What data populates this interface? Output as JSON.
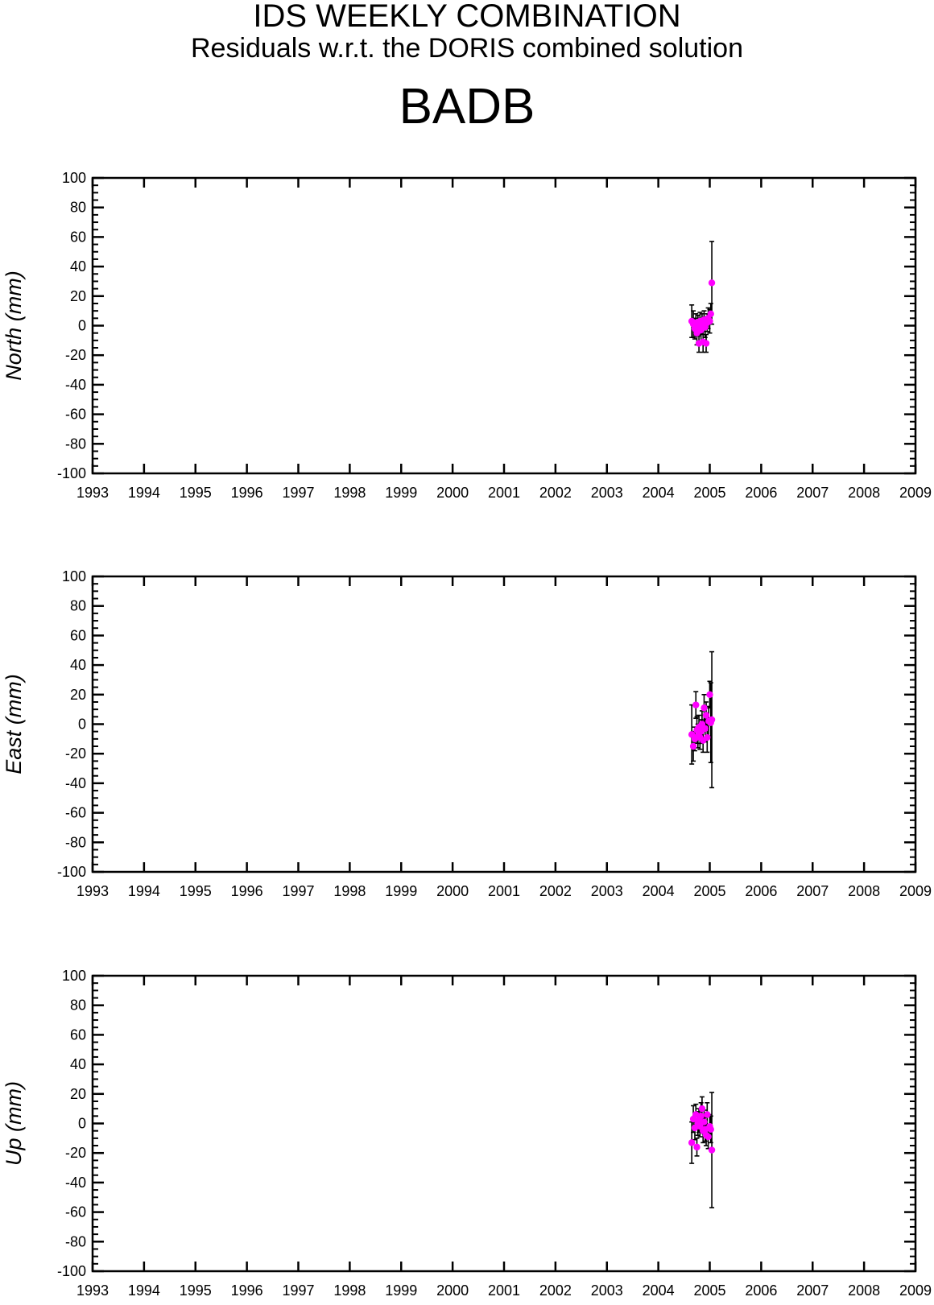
{
  "title": "IDS WEEKLY COMBINATION",
  "subtitle": "Residuals w.r.t. the DORIS combined solution",
  "station": "BADB",
  "chart_data": [
    {
      "type": "scatter",
      "ylabel": "North (mm)",
      "xlim": [
        1993,
        2009
      ],
      "ylim": [
        -100,
        100
      ],
      "x_ticks": [
        "1993",
        "1994",
        "1995",
        "1996",
        "1997",
        "1998",
        "1999",
        "2000",
        "2001",
        "2002",
        "2003",
        "2004",
        "2005",
        "2006",
        "2007",
        "2008",
        "2009"
      ],
      "y_ticks": [
        "100",
        "80",
        "60",
        "40",
        "20",
        "0",
        "-20",
        "-40",
        "-60",
        "-80",
        "-100"
      ],
      "points": [
        {
          "x": 2004.65,
          "y": 3,
          "err": 11
        },
        {
          "x": 2004.68,
          "y": 1,
          "err": 9
        },
        {
          "x": 2004.71,
          "y": -2,
          "err": 7
        },
        {
          "x": 2004.73,
          "y": 2,
          "err": 6
        },
        {
          "x": 2004.75,
          "y": -5,
          "err": 8
        },
        {
          "x": 2004.77,
          "y": 0,
          "err": 7
        },
        {
          "x": 2004.79,
          "y": -12,
          "err": 6
        },
        {
          "x": 2004.81,
          "y": 3,
          "err": 6
        },
        {
          "x": 2004.83,
          "y": -3,
          "err": 8
        },
        {
          "x": 2004.85,
          "y": 1,
          "err": 7
        },
        {
          "x": 2004.87,
          "y": -11,
          "err": 7
        },
        {
          "x": 2004.89,
          "y": 4,
          "err": 6
        },
        {
          "x": 2004.91,
          "y": -1,
          "err": 7
        },
        {
          "x": 2004.93,
          "y": -12,
          "err": 6
        },
        {
          "x": 2004.95,
          "y": 2,
          "err": 6
        },
        {
          "x": 2004.97,
          "y": 5,
          "err": 7
        },
        {
          "x": 2005.0,
          "y": 3,
          "err": 8
        },
        {
          "x": 2005.02,
          "y": 8,
          "err": 7
        },
        {
          "x": 2005.04,
          "y": 29,
          "err": 28
        }
      ]
    },
    {
      "type": "scatter",
      "ylabel": "East (mm)",
      "xlim": [
        1993,
        2009
      ],
      "ylim": [
        -100,
        100
      ],
      "x_ticks": [
        "1993",
        "1994",
        "1995",
        "1996",
        "1997",
        "1998",
        "1999",
        "2000",
        "2001",
        "2002",
        "2003",
        "2004",
        "2005",
        "2006",
        "2007",
        "2008",
        "2009"
      ],
      "y_ticks": [
        "100",
        "80",
        "60",
        "40",
        "20",
        "0",
        "-20",
        "-40",
        "-60",
        "-80",
        "-100"
      ],
      "points": [
        {
          "x": 2004.65,
          "y": -7,
          "err": 20
        },
        {
          "x": 2004.68,
          "y": -15,
          "err": 10
        },
        {
          "x": 2004.71,
          "y": -10,
          "err": 8
        },
        {
          "x": 2004.73,
          "y": 13,
          "err": 9
        },
        {
          "x": 2004.75,
          "y": -4,
          "err": 9
        },
        {
          "x": 2004.77,
          "y": -8,
          "err": 8
        },
        {
          "x": 2004.79,
          "y": -2,
          "err": 8
        },
        {
          "x": 2004.81,
          "y": -9,
          "err": 8
        },
        {
          "x": 2004.83,
          "y": -5,
          "err": 8
        },
        {
          "x": 2004.85,
          "y": 0,
          "err": 9
        },
        {
          "x": 2004.87,
          "y": -11,
          "err": 8
        },
        {
          "x": 2004.89,
          "y": 11,
          "err": 9
        },
        {
          "x": 2004.91,
          "y": -3,
          "err": 9
        },
        {
          "x": 2004.93,
          "y": 6,
          "err": 9
        },
        {
          "x": 2004.95,
          "y": -9,
          "err": 10
        },
        {
          "x": 2004.98,
          "y": 2,
          "err": 10
        },
        {
          "x": 2005.0,
          "y": 20,
          "err": 9
        },
        {
          "x": 2005.02,
          "y": 1,
          "err": 27
        },
        {
          "x": 2005.04,
          "y": 3,
          "err": 46
        }
      ]
    },
    {
      "type": "scatter",
      "ylabel": "Up (mm)",
      "xlim": [
        1993,
        2009
      ],
      "ylim": [
        -100,
        100
      ],
      "x_ticks": [
        "1993",
        "1994",
        "1995",
        "1996",
        "1997",
        "1998",
        "1999",
        "2000",
        "2001",
        "2002",
        "2003",
        "2004",
        "2005",
        "2006",
        "2007",
        "2008",
        "2009"
      ],
      "y_ticks": [
        "100",
        "80",
        "60",
        "40",
        "20",
        "0",
        "-20",
        "-40",
        "-60",
        "-80",
        "-100"
      ],
      "points": [
        {
          "x": 2004.65,
          "y": -13,
          "err": 14
        },
        {
          "x": 2004.68,
          "y": 3,
          "err": 9
        },
        {
          "x": 2004.71,
          "y": -3,
          "err": 8
        },
        {
          "x": 2004.73,
          "y": 6,
          "err": 7
        },
        {
          "x": 2004.75,
          "y": -16,
          "err": 6
        },
        {
          "x": 2004.77,
          "y": 0,
          "err": 8
        },
        {
          "x": 2004.79,
          "y": 2,
          "err": 8
        },
        {
          "x": 2004.81,
          "y": -2,
          "err": 7
        },
        {
          "x": 2004.83,
          "y": 5,
          "err": 9
        },
        {
          "x": 2004.85,
          "y": 10,
          "err": 8
        },
        {
          "x": 2004.87,
          "y": -5,
          "err": 8
        },
        {
          "x": 2004.89,
          "y": 1,
          "err": 8
        },
        {
          "x": 2004.91,
          "y": -4,
          "err": 8
        },
        {
          "x": 2004.93,
          "y": -8,
          "err": 7
        },
        {
          "x": 2004.95,
          "y": 6,
          "err": 8
        },
        {
          "x": 2004.97,
          "y": -9,
          "err": 8
        },
        {
          "x": 2005.0,
          "y": -2,
          "err": 8
        },
        {
          "x": 2005.02,
          "y": -4,
          "err": 9
        },
        {
          "x": 2005.04,
          "y": -18,
          "err": 39
        }
      ]
    }
  ],
  "colors": {
    "marker": "#ff00ff",
    "errorbar": "#000000",
    "axis": "#000000"
  }
}
